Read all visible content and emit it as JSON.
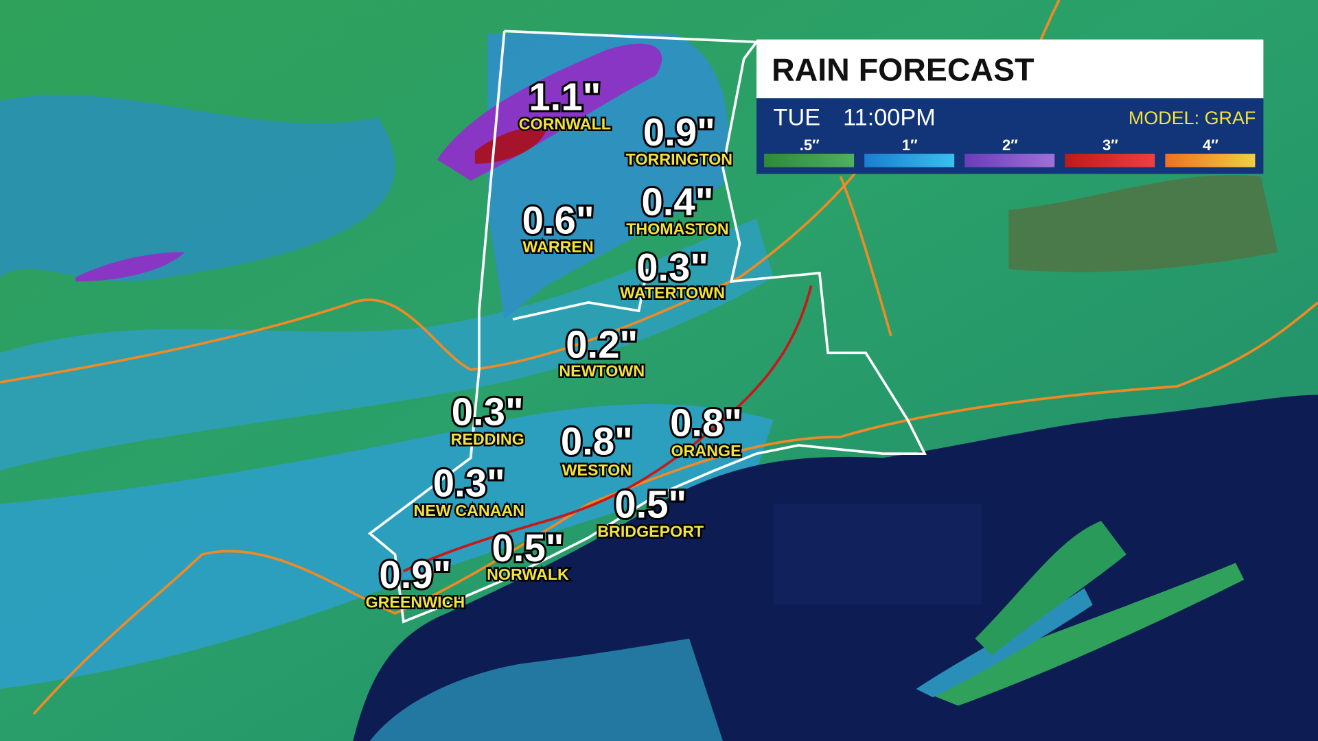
{
  "header": {
    "title": "RAIN FORECAST",
    "day": "TUE",
    "time": "11:00PM",
    "model": "MODEL: GRAF"
  },
  "legend": [
    ".5″",
    "1″",
    "2″",
    "3″",
    "4″"
  ],
  "locations": [
    {
      "name": "CORNWALL",
      "amount": "1.1\""
    },
    {
      "name": "TORRINGTON",
      "amount": "0.9\""
    },
    {
      "name": "WARREN",
      "amount": "0.6\""
    },
    {
      "name": "THOMASTON",
      "amount": "0.4\""
    },
    {
      "name": "WATERTOWN",
      "amount": "0.3\""
    },
    {
      "name": "NEWTOWN",
      "amount": "0.2\""
    },
    {
      "name": "REDDING",
      "amount": "0.3\""
    },
    {
      "name": "WESTON",
      "amount": "0.8\""
    },
    {
      "name": "ORANGE",
      "amount": "0.8\""
    },
    {
      "name": "NEW CANAAN",
      "amount": "0.3\""
    },
    {
      "name": "BRIDGEPORT",
      "amount": "0.5\""
    },
    {
      "name": "NORWALK",
      "amount": "0.5\""
    },
    {
      "name": "GREENWICH",
      "amount": "0.9\""
    }
  ]
}
